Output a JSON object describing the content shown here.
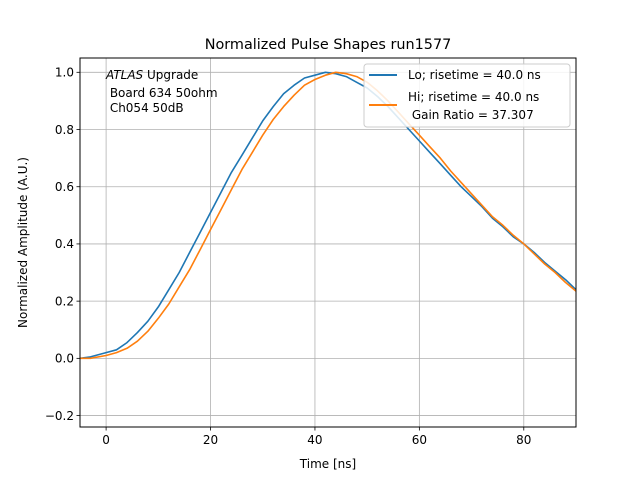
{
  "chart_data": {
    "type": "line",
    "title": "Normalized Pulse Shapes run1577",
    "xlabel": "Time [ns]",
    "ylabel": "Normalized Amplitude (A.U.)",
    "xlim": [
      -5,
      90
    ],
    "ylim": [
      -0.24,
      1.05
    ],
    "xticks": [
      0,
      20,
      40,
      60,
      80
    ],
    "yticks": [
      -0.2,
      0.0,
      0.2,
      0.4,
      0.6,
      0.8,
      1.0
    ],
    "xtick_labels": [
      "0",
      "20",
      "40",
      "60",
      "80"
    ],
    "ytick_labels": [
      "−0.2",
      "0.0",
      "0.2",
      "0.4",
      "0.6",
      "0.8",
      "1.0"
    ],
    "grid": true,
    "legend_position": "top-right",
    "annotation": {
      "italic": "ATLAS",
      "rest": " Upgrade",
      "line2": " Board 634 50ohm",
      "line3": " Ch054 50dB"
    },
    "legend_extra": " Gain Ratio = 37.307",
    "series": [
      {
        "name": "Lo; risetime = 40.0 ns",
        "color": "#1f77b4",
        "x": [
          -5,
          -3,
          0,
          2,
          4,
          6,
          8,
          10,
          12,
          14,
          16,
          18,
          20,
          22,
          24,
          26,
          28,
          30,
          32,
          34,
          36,
          38,
          40,
          42,
          44,
          46,
          48,
          50,
          52,
          54,
          56,
          58,
          60,
          62,
          64,
          66,
          68,
          70,
          72,
          74,
          76,
          78,
          80,
          82,
          84,
          86,
          88,
          90
        ],
        "y": [
          0.0,
          0.005,
          0.02,
          0.03,
          0.055,
          0.09,
          0.13,
          0.18,
          0.24,
          0.3,
          0.37,
          0.44,
          0.51,
          0.58,
          0.65,
          0.71,
          0.77,
          0.83,
          0.88,
          0.925,
          0.955,
          0.98,
          0.99,
          1.0,
          0.995,
          0.985,
          0.965,
          0.945,
          0.915,
          0.88,
          0.84,
          0.8,
          0.76,
          0.72,
          0.68,
          0.64,
          0.6,
          0.565,
          0.53,
          0.49,
          0.46,
          0.425,
          0.4,
          0.37,
          0.335,
          0.305,
          0.275,
          0.24
        ]
      },
      {
        "name": "Hi; risetime = 40.0 ns",
        "color": "#ff7f0e",
        "x": [
          -5,
          -3,
          0,
          2,
          4,
          6,
          8,
          10,
          12,
          14,
          16,
          18,
          20,
          22,
          24,
          26,
          28,
          30,
          32,
          34,
          36,
          38,
          40,
          42,
          44,
          46,
          48,
          50,
          52,
          54,
          56,
          58,
          60,
          62,
          64,
          66,
          68,
          70,
          72,
          74,
          76,
          78,
          80,
          82,
          84,
          86,
          88,
          90
        ],
        "y": [
          0.0,
          0.0,
          0.01,
          0.02,
          0.035,
          0.06,
          0.095,
          0.14,
          0.19,
          0.25,
          0.31,
          0.38,
          0.45,
          0.52,
          0.59,
          0.66,
          0.72,
          0.78,
          0.835,
          0.88,
          0.92,
          0.955,
          0.975,
          0.99,
          1.0,
          0.995,
          0.985,
          0.965,
          0.935,
          0.9,
          0.86,
          0.82,
          0.78,
          0.74,
          0.7,
          0.655,
          0.615,
          0.575,
          0.535,
          0.495,
          0.465,
          0.43,
          0.4,
          0.365,
          0.33,
          0.3,
          0.265,
          0.235
        ]
      }
    ]
  }
}
